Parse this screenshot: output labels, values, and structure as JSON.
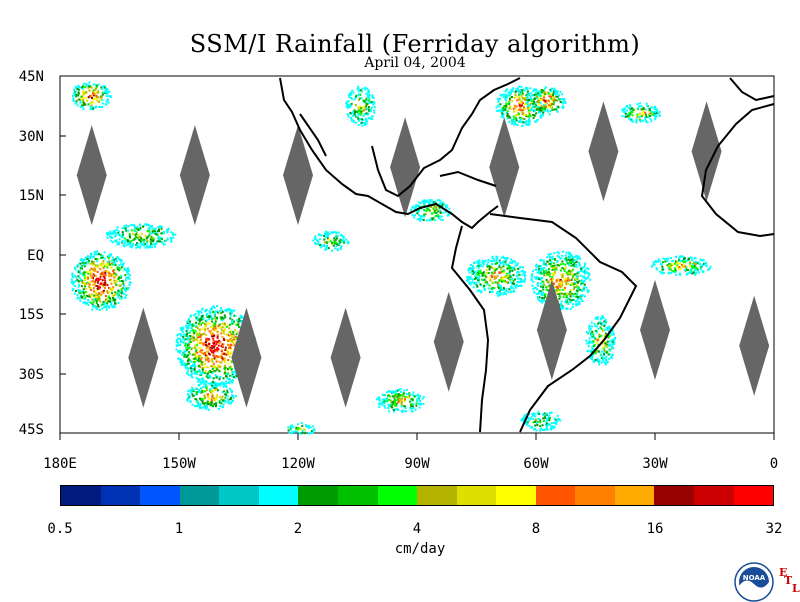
{
  "title": "SSM/I Rainfall (Ferriday algorithm)",
  "date": "April 04, 2004",
  "map": {
    "lat_labels": [
      "45N",
      "30N",
      "15N",
      "EQ",
      "15S",
      "30S",
      "45S"
    ],
    "lon_labels": [
      "180E",
      "150W",
      "120W",
      "90W",
      "60W",
      "30W",
      "0"
    ],
    "lat_range": [
      -45,
      45
    ],
    "lon_range": [
      -180,
      0
    ],
    "no_data_color": "#666666",
    "coast_color": "#000000",
    "missing_swaths": [
      {
        "lon": -172,
        "lat": 20
      },
      {
        "lon": -146,
        "lat": 20
      },
      {
        "lon": -120,
        "lat": 20
      },
      {
        "lon": -93,
        "lat": 22
      },
      {
        "lon": -68,
        "lat": 22
      },
      {
        "lon": -43,
        "lat": 26
      },
      {
        "lon": -17,
        "lat": 26
      },
      {
        "lon": -159,
        "lat": -26
      },
      {
        "lon": -133,
        "lat": -26
      },
      {
        "lon": -108,
        "lat": -26
      },
      {
        "lon": -82,
        "lat": -22
      },
      {
        "lon": -56,
        "lat": -19
      },
      {
        "lon": -30,
        "lat": -19
      },
      {
        "lon": -5,
        "lat": -23
      }
    ]
  },
  "colorbar": {
    "colors": [
      "#001a7f",
      "#0033b3",
      "#0055ff",
      "#00999a",
      "#00c8c8",
      "#00ffff",
      "#009900",
      "#00c000",
      "#00ff00",
      "#b3b300",
      "#dede00",
      "#ffff00",
      "#ff5500",
      "#ff8000",
      "#ffaa00",
      "#990000",
      "#cc0000",
      "#ff0000"
    ],
    "ticks": [
      "0.5",
      "1",
      "2",
      "4",
      "8",
      "16",
      "32"
    ],
    "unit": "cm/day"
  },
  "logo": {
    "text": "NOAA",
    "e": "E",
    "t": "T",
    "l": "L"
  }
}
